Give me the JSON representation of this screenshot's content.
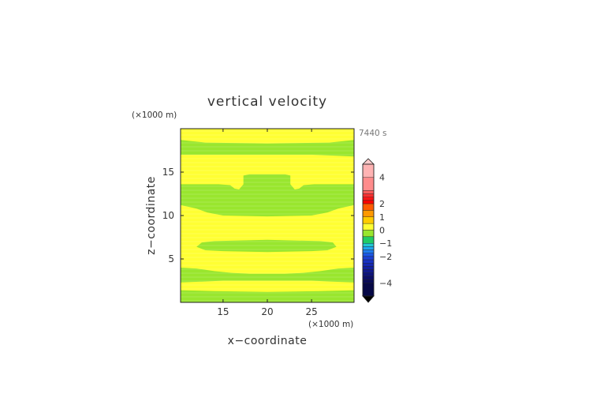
{
  "chart_data": {
    "type": "heatmap",
    "title": "vertical velocity",
    "time_label": "7440 s",
    "xlabel": "x−coordinate",
    "ylabel": "z−coordinate",
    "x_unit": "(×1000 m)",
    "y_unit": "(×1000 m)",
    "xlim": [
      10.2,
      29.8
    ],
    "ylim": [
      0,
      20
    ],
    "x_ticks": [
      {
        "value": 15,
        "label": "15"
      },
      {
        "value": 20,
        "label": "20"
      },
      {
        "value": 25,
        "label": "25"
      }
    ],
    "y_ticks": [
      {
        "value": 5,
        "label": "5"
      },
      {
        "value": 10,
        "label": "10"
      },
      {
        "value": 15,
        "label": "15"
      }
    ],
    "background_color": "#ffff33",
    "green_color": "#99e62e",
    "green_regions": [
      {
        "name": "band-top",
        "points": [
          [
            10.2,
            18.7
          ],
          [
            13,
            18.4
          ],
          [
            20,
            18.3
          ],
          [
            27,
            18.4
          ],
          [
            29.8,
            18.7
          ],
          [
            29.8,
            16.8
          ],
          [
            25,
            17.0
          ],
          [
            20,
            17.0
          ],
          [
            15,
            17.0
          ],
          [
            10.2,
            17.0
          ]
        ]
      },
      {
        "name": "mid-block",
        "points": [
          [
            10.2,
            13.6
          ],
          [
            14.5,
            13.6
          ],
          [
            15.8,
            13.5
          ],
          [
            16.3,
            13.1
          ],
          [
            16.8,
            13.0
          ],
          [
            17.3,
            13.6
          ],
          [
            17.3,
            14.6
          ],
          [
            18,
            14.75
          ],
          [
            22,
            14.75
          ],
          [
            22.6,
            14.6
          ],
          [
            22.6,
            13.6
          ],
          [
            23.1,
            13.0
          ],
          [
            23.6,
            13.1
          ],
          [
            24.1,
            13.5
          ],
          [
            25.3,
            13.6
          ],
          [
            29.8,
            13.6
          ],
          [
            29.8,
            11.2
          ],
          [
            28,
            10.8
          ],
          [
            26.8,
            10.35
          ],
          [
            25,
            10.0
          ],
          [
            20,
            9.9
          ],
          [
            15,
            10.0
          ],
          [
            13.2,
            10.35
          ],
          [
            12,
            10.8
          ],
          [
            10.2,
            11.2
          ]
        ]
      },
      {
        "name": "band-lower-mid",
        "points": [
          [
            12,
            6.4
          ],
          [
            12.6,
            6.9
          ],
          [
            14,
            7.05
          ],
          [
            20,
            7.2
          ],
          [
            26,
            7.05
          ],
          [
            27.4,
            6.9
          ],
          [
            27.8,
            6.4
          ],
          [
            26.8,
            6.0
          ],
          [
            25,
            5.9
          ],
          [
            20,
            5.8
          ],
          [
            15,
            5.9
          ],
          [
            13,
            6.0
          ]
        ]
      },
      {
        "name": "band-low",
        "points": [
          [
            10.2,
            4.0
          ],
          [
            12,
            3.9
          ],
          [
            14,
            3.6
          ],
          [
            16,
            3.4
          ],
          [
            18,
            3.3
          ],
          [
            22,
            3.3
          ],
          [
            24,
            3.4
          ],
          [
            26,
            3.6
          ],
          [
            28,
            3.9
          ],
          [
            29.8,
            4.0
          ],
          [
            29.8,
            2.3
          ],
          [
            27,
            2.4
          ],
          [
            25,
            2.5
          ],
          [
            20,
            2.5
          ],
          [
            15,
            2.5
          ],
          [
            13,
            2.4
          ],
          [
            10.2,
            2.3
          ]
        ]
      },
      {
        "name": "band-bottom",
        "points": [
          [
            10.2,
            1.4
          ],
          [
            14,
            1.3
          ],
          [
            20,
            1.2
          ],
          [
            26,
            1.3
          ],
          [
            29.8,
            1.4
          ],
          [
            29.8,
            0
          ],
          [
            10.2,
            0
          ]
        ]
      }
    ],
    "colorbar": {
      "labels": [
        {
          "value": 4,
          "label": "4"
        },
        {
          "value": 2,
          "label": "2"
        },
        {
          "value": 1,
          "label": "1"
        },
        {
          "value": 0,
          "label": "0"
        },
        {
          "value": -1,
          "label": "−1"
        },
        {
          "value": -2,
          "label": "−2"
        },
        {
          "value": -4,
          "label": "−4"
        }
      ],
      "bins": [
        {
          "lo": 4.0,
          "hi": 5.0,
          "color": "#ffb3b3"
        },
        {
          "lo": 3.0,
          "hi": 4.0,
          "color": "#ff8c8c"
        },
        {
          "lo": 2.75,
          "hi": 3.0,
          "color": "#ff5c5c"
        },
        {
          "lo": 2.5,
          "hi": 2.75,
          "color": "#ff3030"
        },
        {
          "lo": 2.25,
          "hi": 2.5,
          "color": "#ff1414"
        },
        {
          "lo": 2.0,
          "hi": 2.25,
          "color": "#ff0000"
        },
        {
          "lo": 1.5,
          "hi": 2.0,
          "color": "#ff5a00"
        },
        {
          "lo": 1.0,
          "hi": 1.5,
          "color": "#ff9900"
        },
        {
          "lo": 0.5,
          "hi": 1.0,
          "color": "#ffcc00"
        },
        {
          "lo": 0.0,
          "hi": 0.5,
          "color": "#ffff33"
        },
        {
          "lo": -0.5,
          "hi": 0.0,
          "color": "#99e62e"
        },
        {
          "lo": -1.0,
          "hi": -0.5,
          "color": "#22cc66"
        },
        {
          "lo": -1.25,
          "hi": -1.0,
          "color": "#22c8d2"
        },
        {
          "lo": -1.5,
          "hi": -1.25,
          "color": "#1fa8ee"
        },
        {
          "lo": -1.75,
          "hi": -1.5,
          "color": "#1e7cf0"
        },
        {
          "lo": -2.0,
          "hi": -1.75,
          "color": "#1a56e6"
        },
        {
          "lo": -2.25,
          "hi": -2.0,
          "color": "#1a40d6"
        },
        {
          "lo": -2.5,
          "hi": -2.25,
          "color": "#1732c4"
        },
        {
          "lo": -2.75,
          "hi": -2.5,
          "color": "#1528b2"
        },
        {
          "lo": -3.0,
          "hi": -2.75,
          "color": "#1220a0"
        },
        {
          "lo": -3.25,
          "hi": -3.0,
          "color": "#10198e"
        },
        {
          "lo": -3.5,
          "hi": -3.25,
          "color": "#0d137c"
        },
        {
          "lo": -3.75,
          "hi": -3.5,
          "color": "#0b0e6a"
        },
        {
          "lo": -4.0,
          "hi": -3.75,
          "color": "#080a58"
        },
        {
          "lo": -5.0,
          "hi": -4.0,
          "color": "#060846"
        }
      ],
      "vmin": -5,
      "vmax": 5,
      "over_color": "#ffcccc",
      "under_color": "#000000"
    }
  }
}
